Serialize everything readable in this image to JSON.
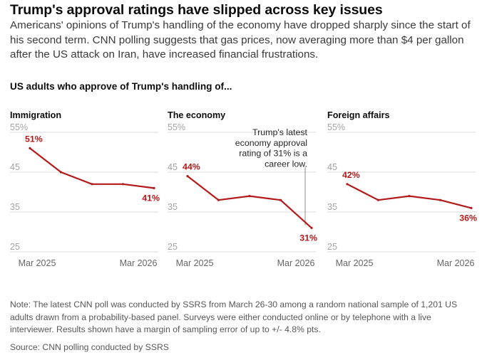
{
  "headline": "Trump's approval ratings have slipped across key issues",
  "dek": "Americans' opinions of Trump's handling of the economy have dropped sharply since the start of his second term. CNN polling suggests that gas prices, now averaging more than $4 per gallon after the US attack on Iran, have increased financial frustrations.",
  "section_title": "US adults who approve of Trump's handling of...",
  "note": "Note: The latest CNN poll was conducted by SSRS from March 26-30 among a random national sample of 1,201 US adults drawn from a probability-based panel. Surveys were either conducted online or by telephone with a live interviewer. Results shown have a margin of sampling error of up to +/- 4.8% pts.",
  "source": "Source: CNN polling conducted by SSRS",
  "colors": {
    "line": "#b31b1b",
    "grid": "#d8d8d8",
    "tick": "#a3a3a3",
    "axis_label": "#666666",
    "annotation": "#262626",
    "annotation_leader": "#8c8c8c"
  },
  "chart_data": [
    {
      "type": "line",
      "title": "Immigration",
      "x": [
        "Mar 2025",
        "",
        "",
        "",
        "Mar 2026"
      ],
      "x_tick_labels": [
        "Mar 2025",
        "Mar 2026"
      ],
      "series": [
        {
          "values": [
            51,
            45,
            42,
            42,
            41
          ]
        }
      ],
      "y_tick_labels": [
        "55%",
        "45",
        "35",
        "25"
      ],
      "ylim": [
        25,
        55
      ],
      "data_labels": [
        {
          "index": 0,
          "text": "51%"
        },
        {
          "index": 4,
          "text": "41%"
        }
      ],
      "grid": "horizontal"
    },
    {
      "type": "line",
      "title": "The economy",
      "x": [
        "Mar 2025",
        "",
        "",
        "",
        "Mar 2026"
      ],
      "x_tick_labels": [
        "Mar 2025",
        "Mar 2026"
      ],
      "series": [
        {
          "values": [
            44,
            38,
            39,
            38,
            31
          ]
        }
      ],
      "y_tick_labels": [
        "55%",
        "45",
        "35",
        "25"
      ],
      "ylim": [
        25,
        55
      ],
      "data_labels": [
        {
          "index": 0,
          "text": "44%"
        },
        {
          "index": 4,
          "text": "31%"
        }
      ],
      "annotation": [
        "Trump's latest",
        "economy approval",
        "rating of 31% is a",
        "career low."
      ],
      "grid": "horizontal"
    },
    {
      "type": "line",
      "title": "Foreign affairs",
      "x": [
        "Mar 2025",
        "",
        "",
        "",
        "Mar 2026"
      ],
      "x_tick_labels": [
        "Mar 2025",
        "Mar 2026"
      ],
      "series": [
        {
          "values": [
            42,
            38,
            39,
            38,
            36
          ]
        }
      ],
      "y_tick_labels": [
        "55%",
        "45",
        "35",
        "25"
      ],
      "ylim": [
        25,
        55
      ],
      "data_labels": [
        {
          "index": 0,
          "text": "42%"
        },
        {
          "index": 4,
          "text": "36%"
        }
      ],
      "grid": "horizontal"
    }
  ]
}
